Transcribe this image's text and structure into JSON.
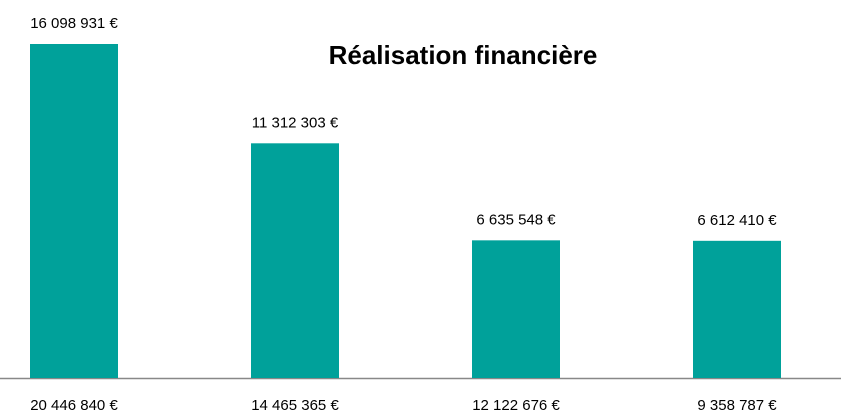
{
  "chart_data": {
    "type": "bar",
    "title": "Réalisation financière",
    "categories": [
      "20 446 840 €",
      "14 465 365 €",
      "12 122 676 €",
      "9 358 787 €"
    ],
    "values": [
      16098931,
      11312303,
      6635548,
      6612410
    ],
    "value_labels": [
      "16 098 931 €",
      "11 312 303 €",
      "6 635 548 €",
      "6 612 410 €"
    ],
    "color": "#00a19a"
  }
}
